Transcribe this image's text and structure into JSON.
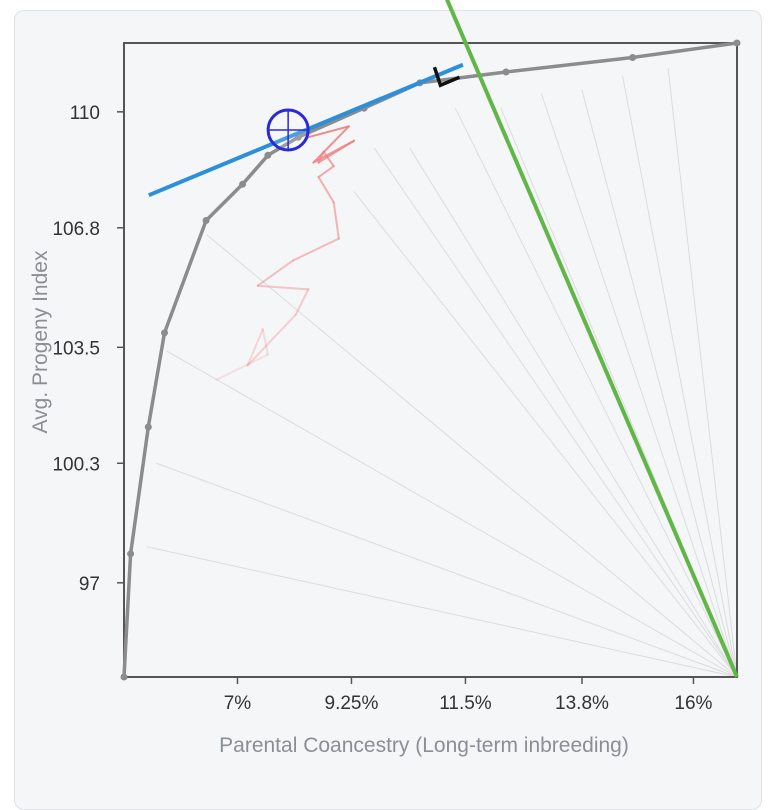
{
  "chart_data": {
    "type": "line",
    "xlabel": "Parental Coancestry (Long-term inbreeding)",
    "ylabel": "Avg. Progeny Index",
    "x_ticks": [
      "7%",
      "9.25%",
      "11.5%",
      "13.8%",
      "16%"
    ],
    "x_tick_values": [
      7,
      9.25,
      11.5,
      13.8,
      16
    ],
    "y_ticks": [
      "110",
      "106.8",
      "103.5",
      "100.3",
      "97"
    ],
    "y_tick_values": [
      110,
      106.8,
      103.5,
      100.3,
      97
    ],
    "xlim": [
      4.76,
      16.86
    ],
    "ylim": [
      94.4,
      111.9
    ],
    "grid": false,
    "series": [
      {
        "role": "frontier",
        "color": "#8c8c8c",
        "points": [
          [
            4.76,
            94.4
          ],
          [
            4.89,
            97.8
          ],
          [
            5.24,
            101.3
          ],
          [
            5.56,
            103.9
          ],
          [
            6.38,
            107.0
          ],
          [
            7.1,
            108.0
          ],
          [
            7.6,
            108.8
          ],
          [
            8.2,
            109.3
          ],
          [
            9.5,
            110.1
          ],
          [
            10.6,
            110.8
          ],
          [
            12.3,
            111.1
          ],
          [
            14.8,
            111.5
          ],
          [
            16.86,
            111.9
          ]
        ]
      },
      {
        "role": "trajectory",
        "color": "#f08080",
        "points": [
          [
            6.58,
            102.6
          ],
          [
            7.6,
            103.3
          ],
          [
            7.5,
            104.0
          ],
          [
            7.2,
            103.0
          ],
          [
            8.15,
            104.4
          ],
          [
            8.4,
            105.1
          ],
          [
            7.4,
            105.2
          ],
          [
            8.1,
            105.9
          ],
          [
            9.0,
            106.5
          ],
          [
            8.9,
            107.5
          ],
          [
            8.6,
            108.2
          ],
          [
            8.9,
            108.5
          ],
          [
            8.7,
            108.9
          ],
          [
            8.6,
            108.6
          ],
          [
            9.3,
            109.2
          ],
          [
            8.5,
            108.6
          ],
          [
            9.2,
            109.6
          ],
          [
            8.4,
            109.3
          ]
        ]
      }
    ],
    "radial_lines_from": [
      16.86,
      94.4
    ],
    "radial_lines_to": [
      [
        5.2,
        98.0
      ],
      [
        5.4,
        100.3
      ],
      [
        5.6,
        103.4
      ],
      [
        6.4,
        106.6
      ],
      [
        9.3,
        107.8
      ],
      [
        9.7,
        109.0
      ],
      [
        10.4,
        109.0
      ],
      [
        11.3,
        110.1
      ],
      [
        12.2,
        110.1
      ],
      [
        13.0,
        110.5
      ],
      [
        13.8,
        110.6
      ],
      [
        14.6,
        111.0
      ],
      [
        15.5,
        111.2
      ]
    ],
    "tangent_line": {
      "color": "#2b8fdc",
      "from": [
        5.25,
        107.7
      ],
      "to": [
        11.45,
        111.3
      ]
    },
    "normal_line": {
      "color": "#62b645",
      "from": [
        10.86,
        114.0
      ],
      "to": [
        16.86,
        94.4
      ]
    },
    "selected_point": {
      "color": "#2a2adb",
      "at": [
        8.0,
        109.5
      ]
    },
    "right_angle_marker": {
      "color": "#111111",
      "at": [
        11.5,
        110.9
      ]
    }
  }
}
